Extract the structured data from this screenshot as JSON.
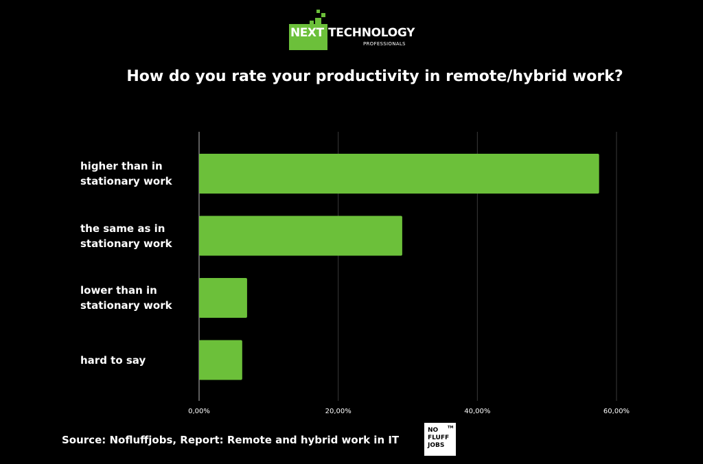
{
  "logo": {
    "next": "NEXT",
    "technology": "TECHNOLOGY",
    "professionals": "PROFESSIONALS"
  },
  "chart_data": {
    "type": "bar",
    "orientation": "horizontal",
    "title": "How do you rate your productivity in remote/hybrid work?",
    "categories": [
      [
        "higher than in",
        "stationary work"
      ],
      [
        "the same as in",
        "stationary work"
      ],
      [
        "lower than in",
        "stationary work"
      ],
      [
        "hard to say"
      ]
    ],
    "values": [
      57.5,
      29.2,
      6.9,
      6.2
    ],
    "xlim": [
      0,
      60
    ],
    "xticks": [
      "0,00%",
      "20,00%",
      "40,00%",
      "60,00%"
    ],
    "grid": "vertical",
    "bar_color": "#6cc03a"
  },
  "footer": {
    "source": "Source: Nofluffjobs, Report: Remote and hybrid work in IT",
    "badge_lines": [
      "NO",
      "FLUFF",
      "JOBS"
    ],
    "badge_tm": "TM"
  }
}
